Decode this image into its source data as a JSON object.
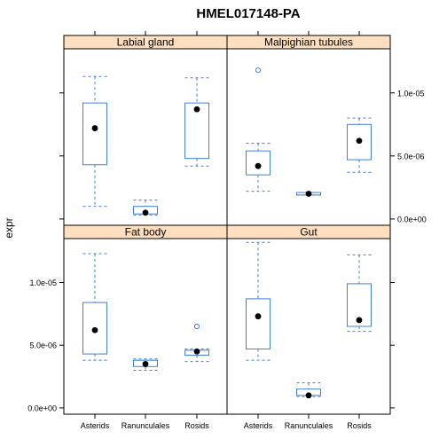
{
  "chart_data": {
    "type": "boxplot",
    "title": "HMEL017148-PA",
    "ylabel": "expr",
    "xlabel": "",
    "categories": [
      "Asterids",
      "Ranunculales",
      "Rosids"
    ],
    "ylim": [
      -5e-07,
      1.35e-05
    ],
    "yticks": [
      0,
      5e-06,
      1e-05
    ],
    "ytick_labels": [
      "0.0e+00",
      "5.0e-06",
      "1.0e-05"
    ],
    "colors": {
      "box": "#3f7fe0",
      "strip": "#ffdfbf",
      "median_dot": "#000000",
      "axis": "#000000"
    },
    "panels": [
      {
        "name": "Labial gland",
        "stats": [
          {
            "category": "Asterids",
            "min": 1e-06,
            "q1": 4.3e-06,
            "median": 7.2e-06,
            "q3": 9.2e-06,
            "max": 1.13e-05,
            "outliers": []
          },
          {
            "category": "Ranunculales",
            "min": 3e-07,
            "q1": 4e-07,
            "median": 5e-07,
            "q3": 1e-06,
            "max": 1.5e-06,
            "outliers": []
          },
          {
            "category": "Rosids",
            "min": 4.2e-06,
            "q1": 4.8e-06,
            "median": 8.7e-06,
            "q3": 9.2e-06,
            "max": 1.12e-05,
            "outliers": []
          }
        ]
      },
      {
        "name": "Malpighian tubules",
        "stats": [
          {
            "category": "Asterids",
            "min": 2.2e-06,
            "q1": 3.5e-06,
            "median": 4.2e-06,
            "q3": 5.4e-06,
            "max": 6e-06,
            "outliers": [
              1.18e-05
            ]
          },
          {
            "category": "Ranunculales",
            "min": 1.9e-06,
            "q1": 1.9e-06,
            "median": 2e-06,
            "q3": 2.1e-06,
            "max": 2.1e-06,
            "outliers": []
          },
          {
            "category": "Rosids",
            "min": 3.7e-06,
            "q1": 4.7e-06,
            "median": 6.2e-06,
            "q3": 7.5e-06,
            "max": 8e-06,
            "outliers": []
          }
        ]
      },
      {
        "name": "Fat body",
        "stats": [
          {
            "category": "Asterids",
            "min": 3.8e-06,
            "q1": 4.3e-06,
            "median": 6.2e-06,
            "q3": 8.4e-06,
            "max": 1.23e-05,
            "outliers": []
          },
          {
            "category": "Ranunculales",
            "min": 3e-06,
            "q1": 3.3e-06,
            "median": 3.5e-06,
            "q3": 3.8e-06,
            "max": 3.9e-06,
            "outliers": []
          },
          {
            "category": "Rosids",
            "min": 3.7e-06,
            "q1": 4.2e-06,
            "median": 4.5e-06,
            "q3": 4.6e-06,
            "max": 4.7e-06,
            "outliers": [
              6.5e-06
            ]
          }
        ]
      },
      {
        "name": "Gut",
        "stats": [
          {
            "category": "Asterids",
            "min": 3.8e-06,
            "q1": 4.7e-06,
            "median": 7.3e-06,
            "q3": 8.7e-06,
            "max": 1.32e-05,
            "outliers": []
          },
          {
            "category": "Ranunculales",
            "min": 9e-07,
            "q1": 1e-06,
            "median": 1e-06,
            "q3": 1.5e-06,
            "max": 2e-06,
            "outliers": []
          },
          {
            "category": "Rosids",
            "min": 6.1e-06,
            "q1": 6.5e-06,
            "median": 7e-06,
            "q3": 9.9e-06,
            "max": 1.22e-05,
            "outliers": []
          }
        ]
      }
    ]
  }
}
